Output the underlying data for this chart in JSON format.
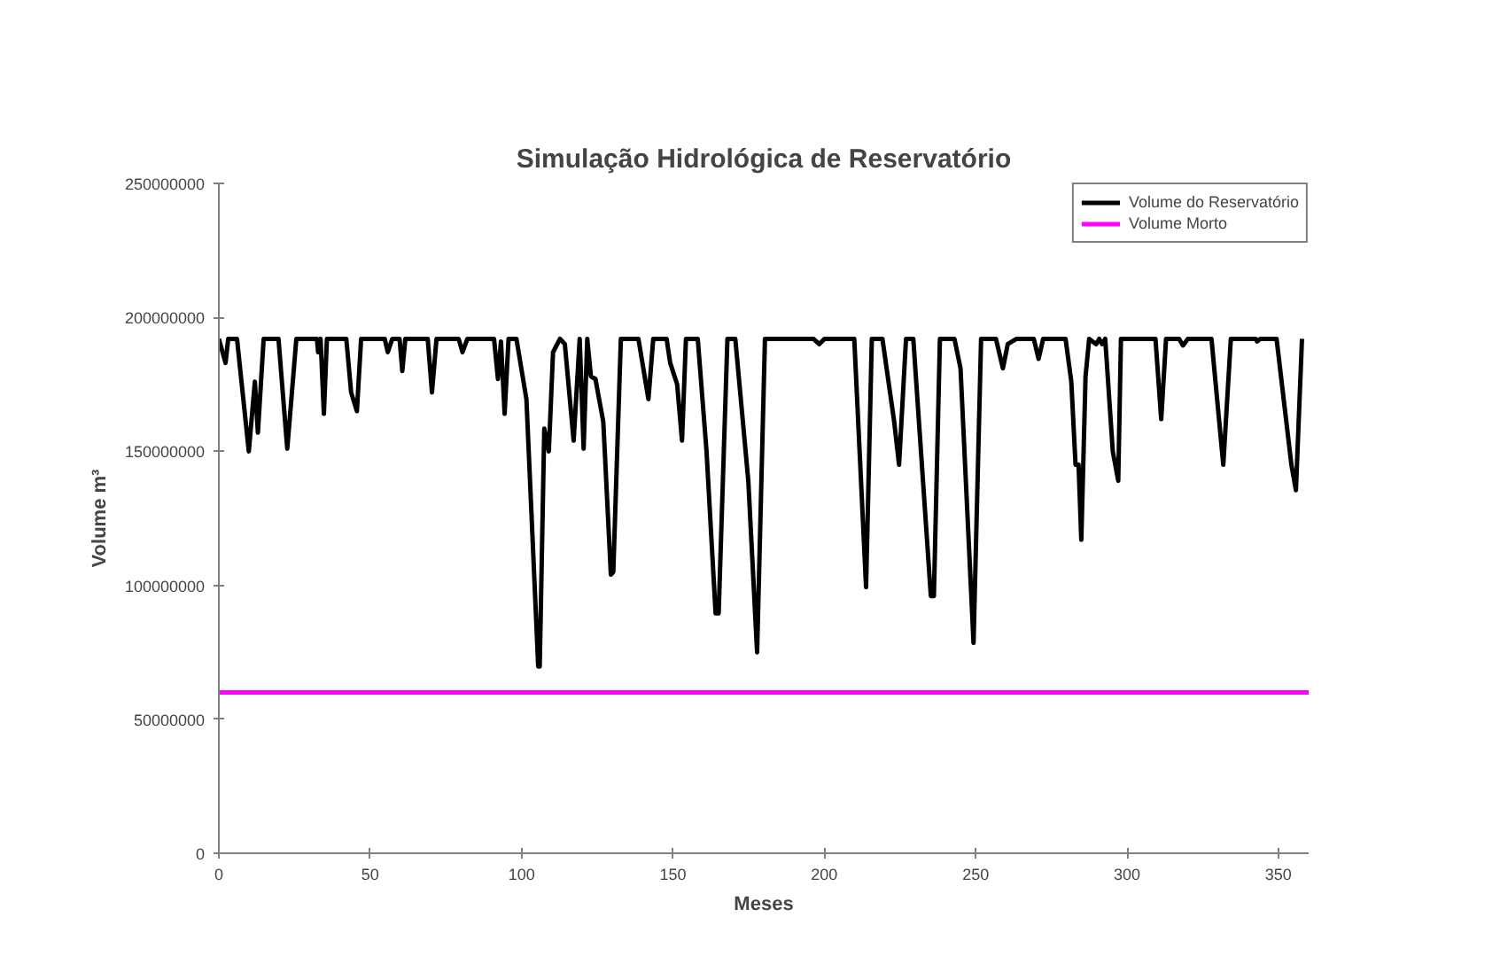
{
  "chart_data": {
    "type": "line",
    "title": "Simulação Hidrológica de Reservatório",
    "xlabel": "Meses",
    "ylabel": "Volume m³",
    "xlim": [
      0,
      360
    ],
    "xticks": [
      0,
      50,
      100,
      150,
      200,
      250,
      300,
      350
    ],
    "ylim": [
      0,
      250000000
    ],
    "yticks": [
      0,
      50000000,
      100000000,
      150000000,
      200000000,
      250000000
    ],
    "grid": false,
    "legend": "top right",
    "marker": "none",
    "line_style": "solid",
    "series": [
      {
        "name": "Volume do Reservatório",
        "color": "#000000",
        "x": [
          0,
          2.2,
          3.1,
          6,
          9.9,
          11.9,
          12.9,
          14.8,
          19.7,
          22.6,
          25.6,
          32.4,
          32.8,
          33.6,
          34.7,
          35.7,
          42.1,
          43.7,
          45.6,
          47,
          54.8,
          55.8,
          57.3,
          59.7,
          60.6,
          61.6,
          69,
          70.4,
          71.9,
          79.2,
          80.5,
          82.1,
          90.9,
          92.2,
          93.2,
          94.4,
          95.7,
          98.3,
          101.6,
          105.5,
          106,
          107.5,
          109,
          110.4,
          112.7,
          114.3,
          117.2,
          119.2,
          120.5,
          121.7,
          122.9,
          124.4,
          127,
          129.5,
          130.3,
          132.8,
          138.6,
          141.9,
          143.5,
          147.9,
          149.1,
          151.4,
          153,
          154.3,
          158.2,
          161.1,
          164.1,
          165.1,
          168,
          170.6,
          174.9,
          177.8,
          180.4,
          196.4,
          198.3,
          200.1,
          209.9,
          213.8,
          215.7,
          219.2,
          223.1,
          224.7,
          227,
          229.4,
          235.2,
          236.2,
          238.2,
          243,
          245,
          249.3,
          251.8,
          256.7,
          259,
          260.6,
          263.5,
          269.2,
          270.8,
          272.3,
          279.7,
          281.6,
          283,
          284,
          284.9,
          286.3,
          287.5,
          289.8,
          290.8,
          291.8,
          292.8,
          295.3,
          297.1,
          298,
          309.4,
          311.3,
          312.9,
          317.2,
          318.5,
          320.1,
          327.9,
          331.8,
          334.3,
          342.5,
          343,
          344,
          349.4,
          354.3,
          355.8,
          357.8
        ],
        "values": [
          192000000,
          183000000,
          192000000,
          192000000,
          150000000,
          176000000,
          157000000,
          192000000,
          192000000,
          151000000,
          192000000,
          192000000,
          187000000,
          192000000,
          164000000,
          192000000,
          192000000,
          172000000,
          165000000,
          192000000,
          192000000,
          187000000,
          192000000,
          192000000,
          180000000,
          192000000,
          192000000,
          172000000,
          192000000,
          192000000,
          187000000,
          192000000,
          192000000,
          177000000,
          191000000,
          164000000,
          192000000,
          192000000,
          169500000,
          69700000,
          69700000,
          158500000,
          150000000,
          187000000,
          192000000,
          190000000,
          154000000,
          192000000,
          151000000,
          192000000,
          178000000,
          177000000,
          161000000,
          104000000,
          105000000,
          192000000,
          192000000,
          169500000,
          192000000,
          192000000,
          183000000,
          175000000,
          154000000,
          192000000,
          192000000,
          150000000,
          89500000,
          89500000,
          192000000,
          192000000,
          139000000,
          75000000,
          192000000,
          192000000,
          190000000,
          192000000,
          192000000,
          99300000,
          192000000,
          192000000,
          161000000,
          145000000,
          192000000,
          192000000,
          96000000,
          96000000,
          192000000,
          192000000,
          181000000,
          78500000,
          192000000,
          192000000,
          181000000,
          190000000,
          192000000,
          192000000,
          184500000,
          192000000,
          192000000,
          176000000,
          145000000,
          145000000,
          117000000,
          178000000,
          192000000,
          190000000,
          192000000,
          190000000,
          192000000,
          150000000,
          139000000,
          192000000,
          192000000,
          162000000,
          192000000,
          192000000,
          189500000,
          192000000,
          192000000,
          145000000,
          192000000,
          192000000,
          191000000,
          192000000,
          192000000,
          145000000,
          135500000,
          192000000
        ]
      },
      {
        "name": "Volume Morto",
        "color": "#ff00ff",
        "x": [
          0,
          360
        ],
        "values": [
          60000000,
          60000000
        ]
      }
    ]
  }
}
